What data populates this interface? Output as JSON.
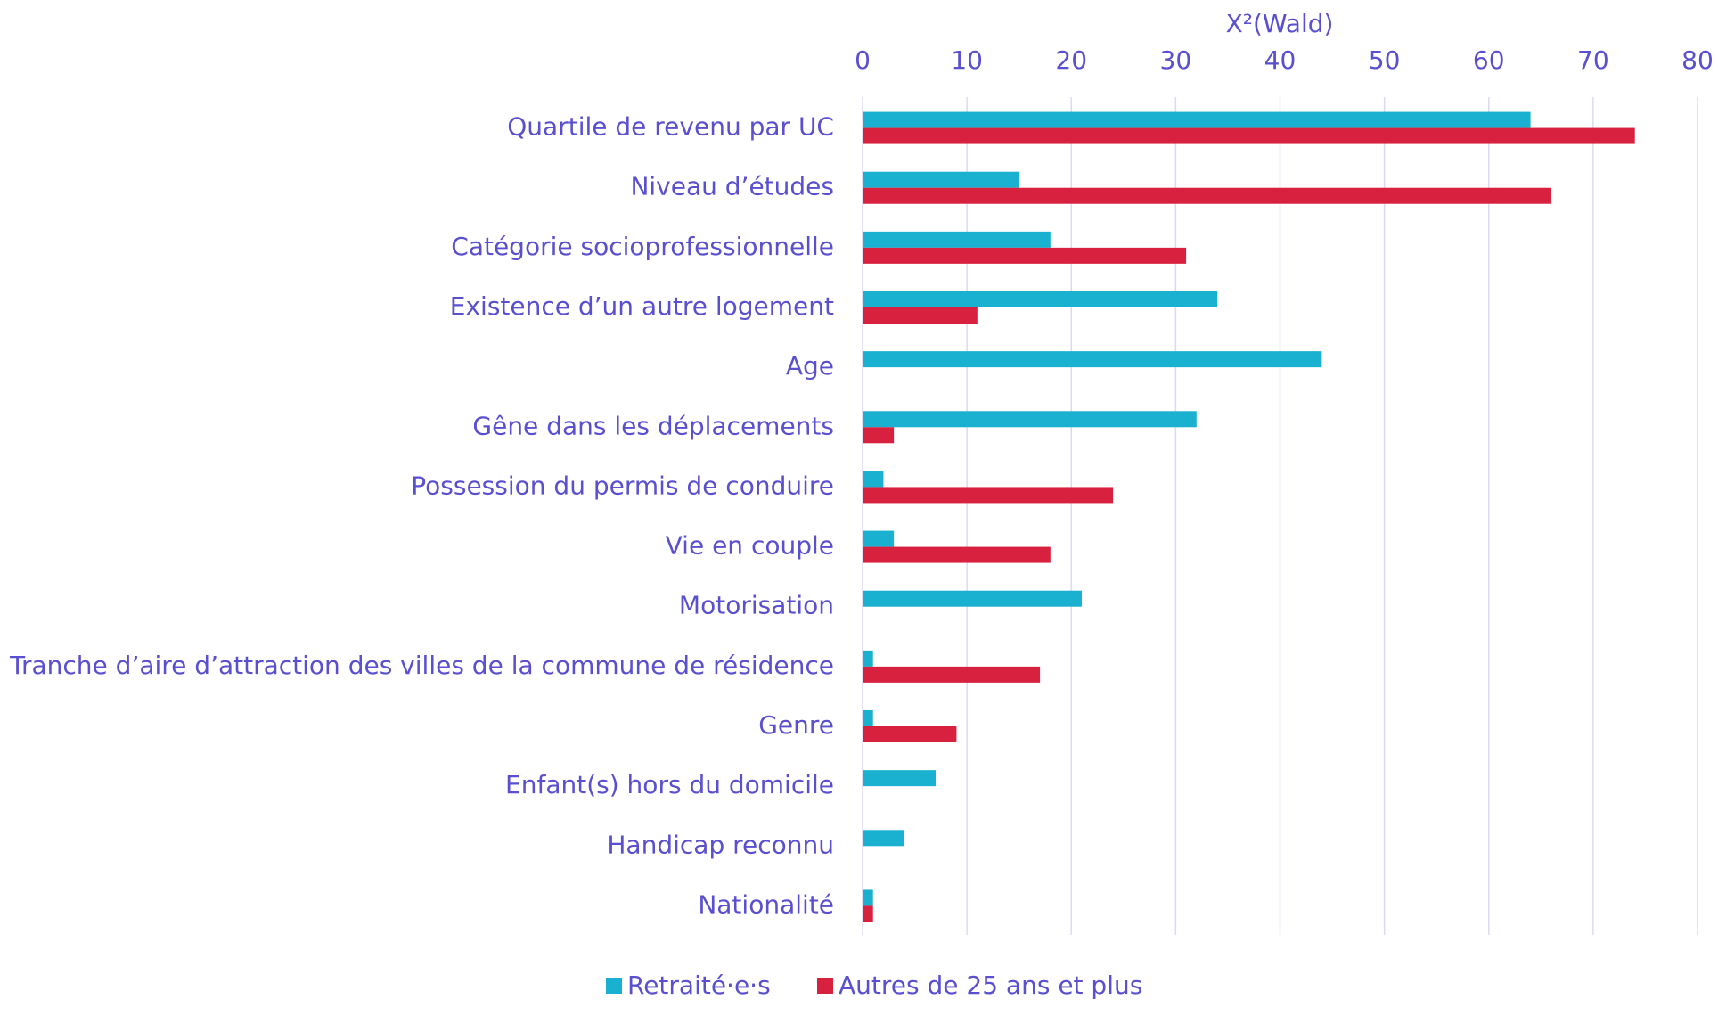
{
  "chart_data": {
    "type": "bar",
    "orientation": "horizontal",
    "xlabel": "X²(Wald)",
    "categories": [
      "Quartile de revenu par UC",
      "Niveau d’études",
      "Catégorie socioprofessionnelle",
      "Existence d’un autre logement",
      "Age",
      "Gêne dans les déplacements",
      "Possession du permis de conduire",
      "Vie en couple",
      "Motorisation",
      "Tranche d’aire d’attraction des villes de la commune de résidence",
      "Genre",
      "Enfant(s) hors du domicile",
      "Handicap reconnu",
      "Nationalité"
    ],
    "series": [
      {
        "name": "Retraité·e·s",
        "color": "#1ab0d0",
        "values": [
          64,
          15,
          18,
          34,
          44,
          32,
          2,
          3,
          21,
          1,
          1,
          7,
          4,
          1
        ]
      },
      {
        "name": "Autres de 25 ans et plus",
        "color": "#d7213f",
        "values": [
          74,
          66,
          31,
          11,
          null,
          3,
          24,
          18,
          null,
          17,
          9,
          null,
          null,
          1
        ]
      }
    ],
    "xlim": [
      0,
      80
    ],
    "xticks": [
      0,
      10,
      20,
      30,
      40,
      50,
      60,
      70,
      80
    ],
    "grid": true,
    "legend": "bottom"
  }
}
